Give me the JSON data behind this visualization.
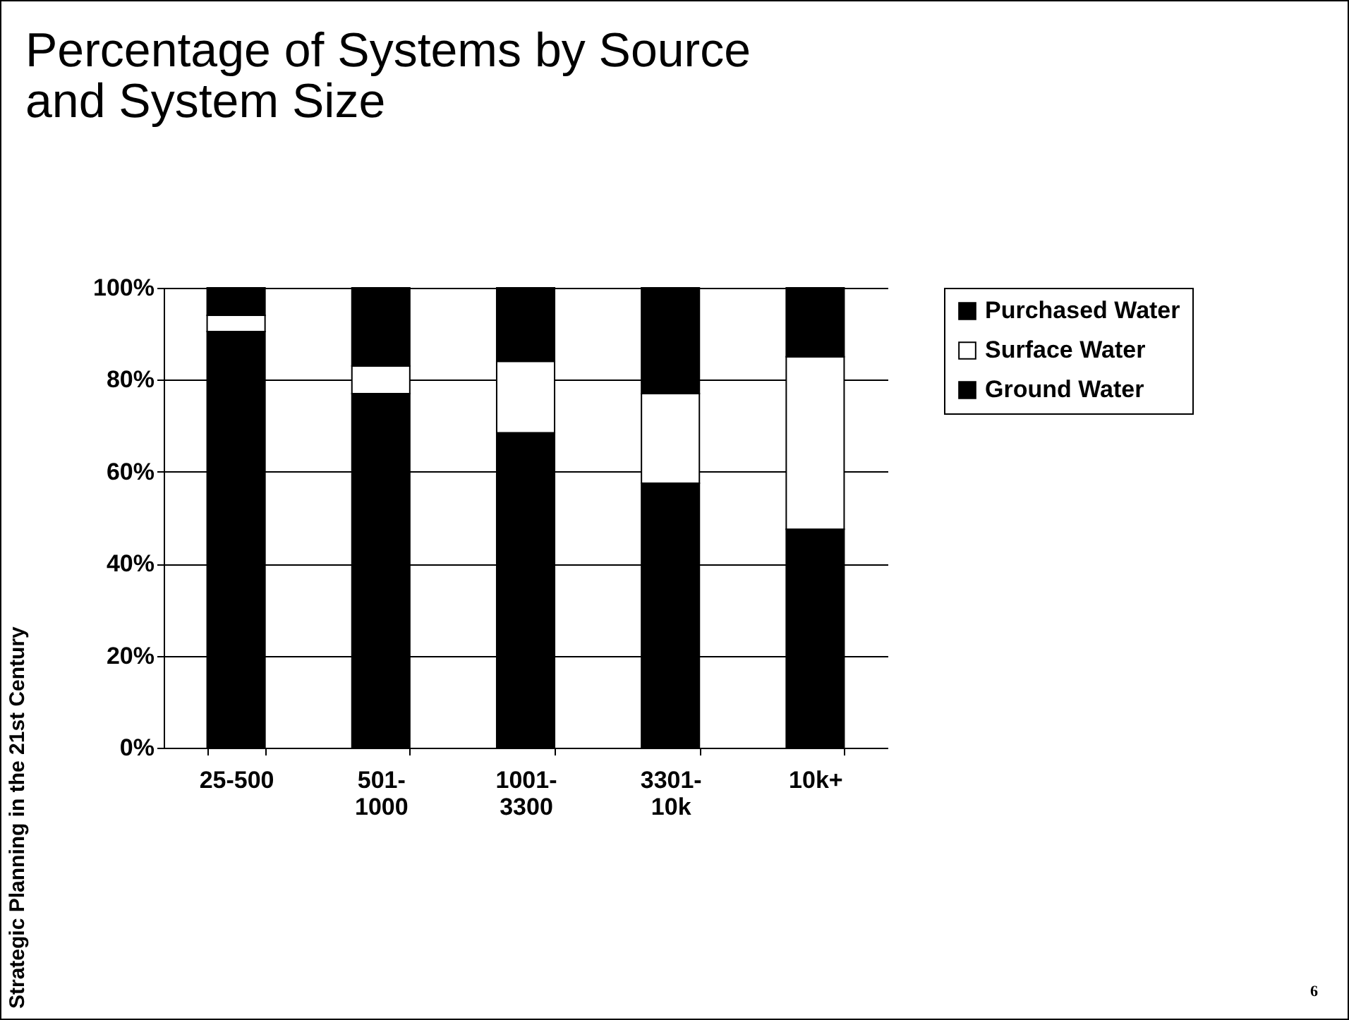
{
  "chart_data": {
    "type": "bar",
    "title": "Percentage of Systems by Source and System Size",
    "categories": [
      "25-500",
      "501-\n1000",
      "1001-\n3300",
      "3301-\n10k",
      "10k+"
    ],
    "stacked": true,
    "series": [
      {
        "name": "Ground Water",
        "color": "#000000",
        "values": [
          90.5,
          77,
          68.5,
          57.5,
          47.5
        ]
      },
      {
        "name": "Surface Water",
        "color": "#ffffff",
        "values": [
          3.5,
          6,
          15.5,
          19.5,
          37.5
        ]
      },
      {
        "name": "Purchased Water",
        "color": "#000000",
        "values": [
          6,
          17,
          16,
          23,
          15
        ]
      }
    ],
    "ylim": [
      0,
      100
    ],
    "yticks": [
      {
        "value": 0,
        "label": "0%"
      },
      {
        "value": 20,
        "label": "20%"
      },
      {
        "value": 40,
        "label": "40%"
      },
      {
        "value": 60,
        "label": "60%"
      },
      {
        "value": 80,
        "label": "80%"
      },
      {
        "value": 100,
        "label": "100%"
      }
    ],
    "grid": "y",
    "legend": "right",
    "annotations": [
      "Strategic Planning in the 21st Century",
      "6"
    ]
  }
}
